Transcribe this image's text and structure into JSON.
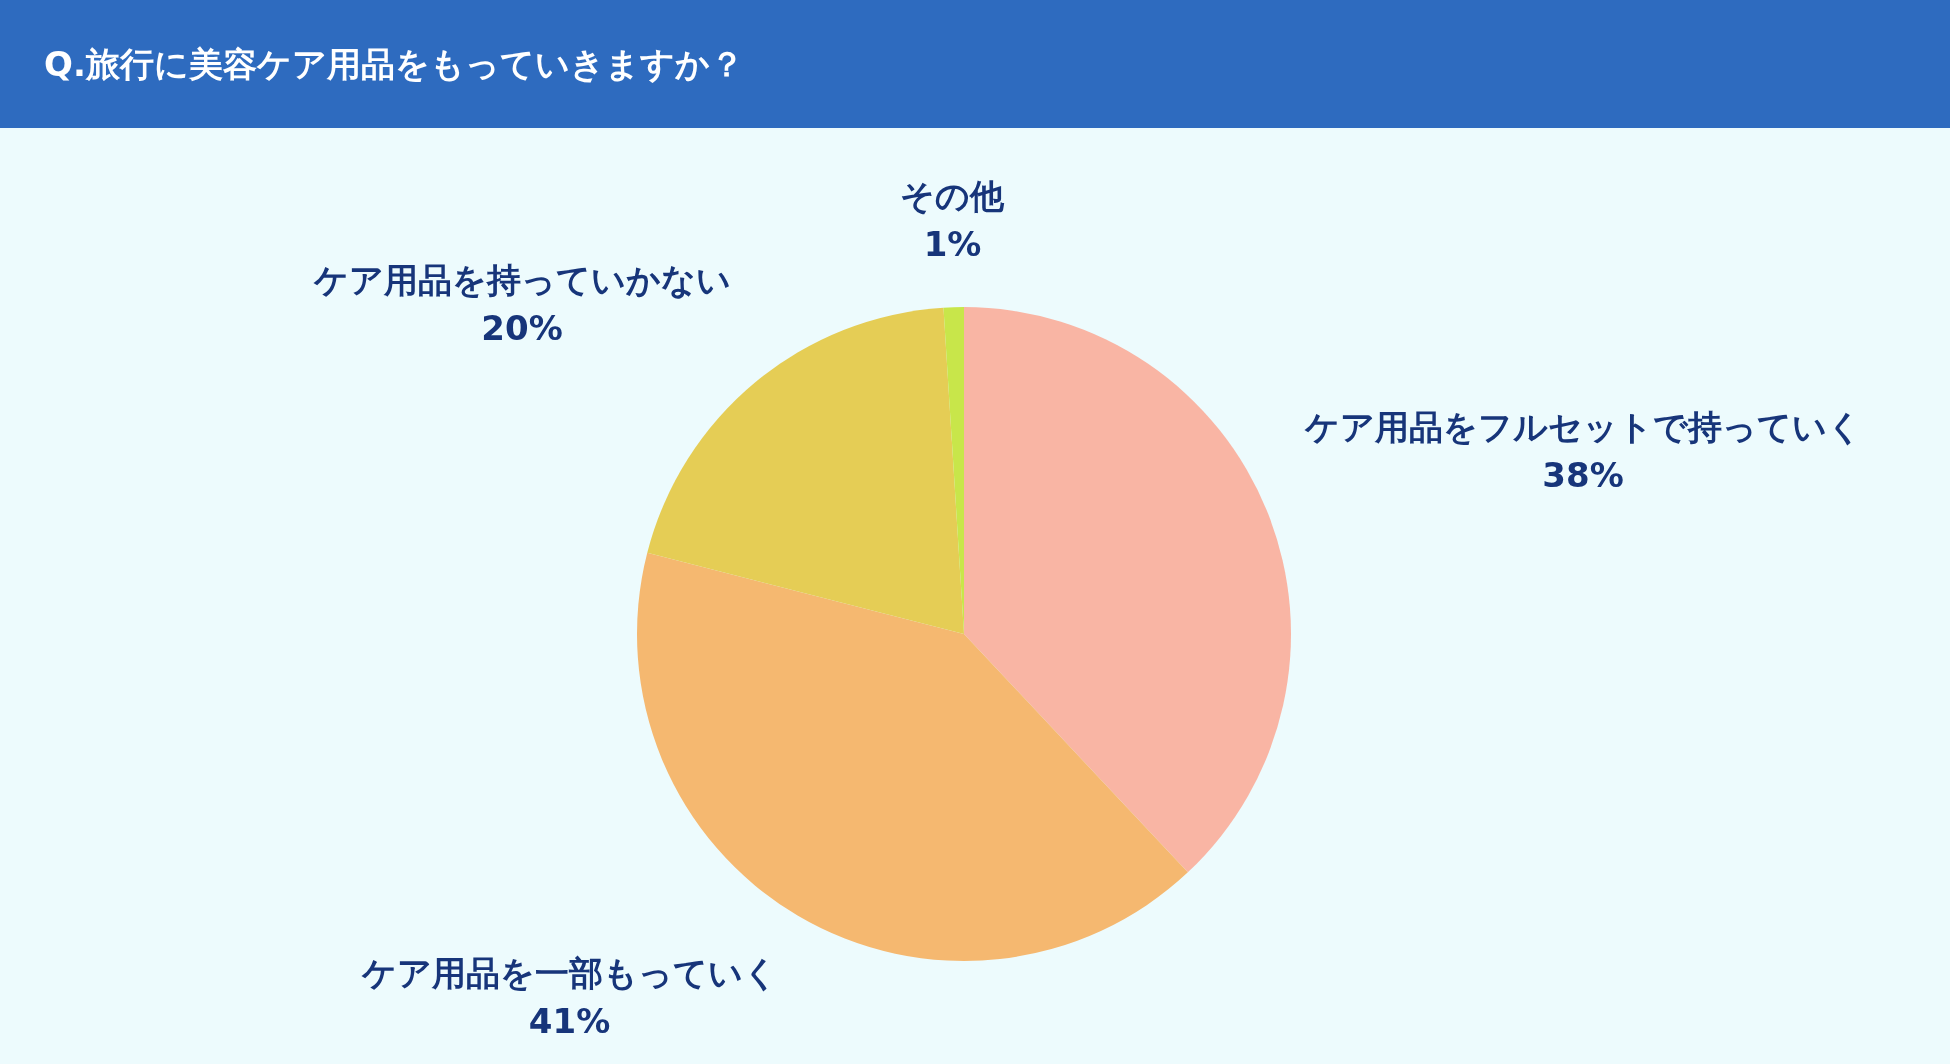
{
  "chart_data": {
    "type": "pie",
    "title": "Q.旅行に美容ケア用品をもっていきますか？",
    "categories": [
      "ケア用品をフルセットで持っていく",
      "ケア用品を一部もっていく",
      "ケア用品を持っていかない",
      "その他"
    ],
    "values": [
      38,
      41,
      20,
      1
    ],
    "colors": [
      "#f9b5a4",
      "#f5b870",
      "#e5cd55",
      "#c8e64a"
    ],
    "value_labels": [
      "38%",
      "41%",
      "20%",
      "1%"
    ]
  }
}
